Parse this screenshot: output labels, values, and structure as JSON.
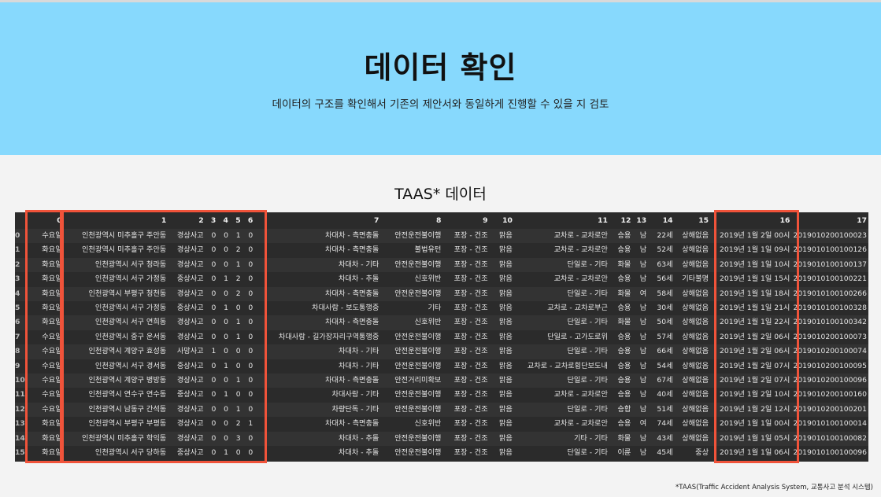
{
  "header": {
    "title": "데이터 확인",
    "subtitle": "데이터의 구조를 확인해서 기존의 제안서와 동일하게 진행할 수 있을 지 검토"
  },
  "section": {
    "title": "TAAS* 데이터"
  },
  "table": {
    "columns": [
      "",
      "0",
      "1",
      "2",
      "3",
      "4",
      "5",
      "6",
      "7",
      "8",
      "9",
      "10",
      "11",
      "12",
      "13",
      "14",
      "15",
      "16",
      "17"
    ],
    "rows": [
      [
        "0",
        "수요일",
        "인천광역시 미추홀구 주안동",
        "경상사고",
        "0",
        "0",
        "1",
        "0",
        "차대차 - 측면충돌",
        "안전운전불이행",
        "포장 - 건조",
        "맑음",
        "교차로 - 교차로안",
        "승용",
        "남",
        "22세",
        "상해없음",
        "2019년 1월 2일 00시",
        "2019010200100023"
      ],
      [
        "1",
        "화요일",
        "인천광역시 미추홀구 주안동",
        "경상사고",
        "0",
        "0",
        "2",
        "0",
        "차대차 - 측면충돌",
        "불법유턴",
        "포장 - 건조",
        "맑음",
        "교차로 - 교차로안",
        "승용",
        "남",
        "52세",
        "상해없음",
        "2019년 1월 1일 09시",
        "2019010100100126"
      ],
      [
        "2",
        "화요일",
        "인천광역시 서구 청라동",
        "경상사고",
        "0",
        "0",
        "1",
        "0",
        "차대차 - 기타",
        "안전운전불이행",
        "포장 - 건조",
        "맑음",
        "단일로 - 기타",
        "화물",
        "남",
        "63세",
        "상해없음",
        "2019년 1월 1일 10시",
        "2019010100100137"
      ],
      [
        "3",
        "화요일",
        "인천광역시 서구 가정동",
        "중상사고",
        "0",
        "1",
        "2",
        "0",
        "차대차 - 추돌",
        "신호위반",
        "포장 - 건조",
        "맑음",
        "교차로 - 교차로안",
        "승용",
        "남",
        "56세",
        "기타불명",
        "2019년 1월 1일 15시",
        "2019010100100221"
      ],
      [
        "4",
        "화요일",
        "인천광역시 부평구 청천동",
        "경상사고",
        "0",
        "0",
        "2",
        "0",
        "차대차 - 측면충돌",
        "안전운전불이행",
        "포장 - 건조",
        "맑음",
        "단일로 - 기타",
        "화물",
        "여",
        "58세",
        "상해없음",
        "2019년 1월 1일 18시",
        "2019010100100266"
      ],
      [
        "5",
        "화요일",
        "인천광역시 서구 가정동",
        "중상사고",
        "0",
        "1",
        "0",
        "0",
        "차대사람 - 보도통행중",
        "기타",
        "포장 - 건조",
        "맑음",
        "교차로 - 교차로부근",
        "승용",
        "남",
        "30세",
        "상해없음",
        "2019년 1월 1일 21시",
        "2019010100100328"
      ],
      [
        "6",
        "화요일",
        "인천광역시 서구 연희동",
        "경상사고",
        "0",
        "0",
        "1",
        "0",
        "차대차 - 측면충돌",
        "신호위반",
        "포장 - 건조",
        "맑음",
        "단일로 - 기타",
        "화물",
        "남",
        "50세",
        "상해없음",
        "2019년 1월 1일 22시",
        "2019010100100342"
      ],
      [
        "7",
        "수요일",
        "인천광역시 중구 운서동",
        "경상사고",
        "0",
        "0",
        "1",
        "0",
        "차대사람 - 길가장자리구역통행중",
        "안전운전불이행",
        "포장 - 건조",
        "맑음",
        "단일로 - 고가도로위",
        "승용",
        "남",
        "57세",
        "상해없음",
        "2019년 1월 2일 06시",
        "2019010200100073"
      ],
      [
        "8",
        "수요일",
        "인천광역시 계양구 효성동",
        "사망사고",
        "1",
        "0",
        "0",
        "0",
        "차대차 - 기타",
        "안전운전불이행",
        "포장 - 건조",
        "맑음",
        "단일로 - 기타",
        "승용",
        "남",
        "66세",
        "상해없음",
        "2019년 1월 2일 06시",
        "2019010200100074"
      ],
      [
        "9",
        "수요일",
        "인천광역시 서구 경서동",
        "중상사고",
        "0",
        "1",
        "0",
        "0",
        "차대차 - 기타",
        "안전운전불이행",
        "포장 - 건조",
        "맑음",
        "교차로 - 교차로횡단보도내",
        "승용",
        "남",
        "54세",
        "상해없음",
        "2019년 1월 2일 07시",
        "2019010200100095"
      ],
      [
        "10",
        "수요일",
        "인천광역시 계양구 병방동",
        "경상사고",
        "0",
        "0",
        "1",
        "0",
        "차대차 - 측면충돌",
        "안전거리미확보",
        "포장 - 건조",
        "맑음",
        "단일로 - 기타",
        "승용",
        "남",
        "67세",
        "상해없음",
        "2019년 1월 2일 07시",
        "2019010200100096"
      ],
      [
        "11",
        "수요일",
        "인천광역시 연수구 연수동",
        "중상사고",
        "0",
        "1",
        "0",
        "0",
        "차대사람 - 기타",
        "안전운전불이행",
        "포장 - 건조",
        "맑음",
        "교차로 - 교차로안",
        "승용",
        "남",
        "40세",
        "상해없음",
        "2019년 1월 2일 10시",
        "2019010200100160"
      ],
      [
        "12",
        "수요일",
        "인천광역시 남동구 간석동",
        "경상사고",
        "0",
        "0",
        "1",
        "0",
        "차량단독 - 기타",
        "안전운전불이행",
        "포장 - 건조",
        "맑음",
        "단일로 - 기타",
        "승합",
        "남",
        "51세",
        "상해없음",
        "2019년 1월 2일 12시",
        "2019010200100201"
      ],
      [
        "13",
        "화요일",
        "인천광역시 부평구 부평동",
        "경상사고",
        "0",
        "0",
        "2",
        "1",
        "차대차 - 측면충돌",
        "신호위반",
        "포장 - 건조",
        "맑음",
        "교차로 - 교차로안",
        "승용",
        "여",
        "74세",
        "상해없음",
        "2019년 1월 1일 00시",
        "2019010100100014"
      ],
      [
        "14",
        "화요일",
        "인천광역시 미추홀구 학익동",
        "경상사고",
        "0",
        "0",
        "3",
        "0",
        "차대차 - 추돌",
        "안전운전불이행",
        "포장 - 건조",
        "맑음",
        "기타 - 기타",
        "화물",
        "남",
        "43세",
        "상해없음",
        "2019년 1월 1일 05시",
        "2019010100100082"
      ],
      [
        "15",
        "화요일",
        "인천광역시 서구 당하동",
        "중상사고",
        "0",
        "1",
        "0",
        "0",
        "차대차 - 추돌",
        "안전운전불이행",
        "포장 - 건조",
        "맑음",
        "단일로 - 기타",
        "이륜",
        "남",
        "45세",
        "중상",
        "2019년 1월 1일 06시",
        "2019010100100096"
      ]
    ]
  },
  "footnote": "*TAAS(Traffic Accident Analysis System, 교통사고 분석 시스템)",
  "colors": {
    "header_bg": "#87d9fd",
    "table_bg": "#2b2b2b",
    "highlight": "#f0533a"
  }
}
